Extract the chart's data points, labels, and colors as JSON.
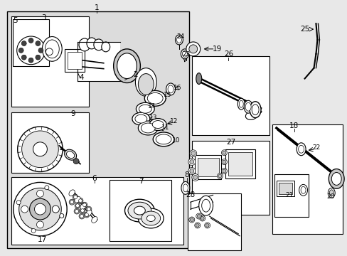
{
  "bg_color": "#e8e8e8",
  "box_fill": "#dcdcdc",
  "white": "#ffffff",
  "lc": "#000000",
  "fig_width": 4.89,
  "fig_height": 3.6,
  "dpi": 100
}
